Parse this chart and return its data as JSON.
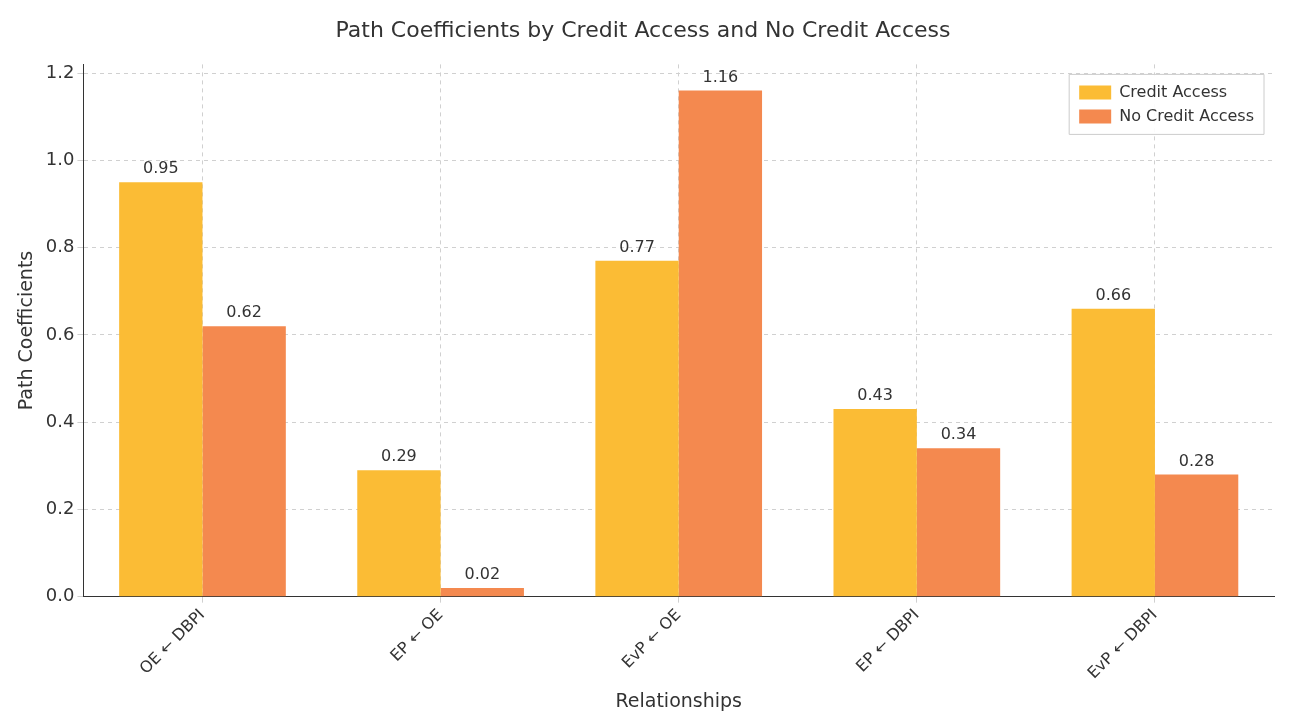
{
  "chart_data": {
    "type": "bar",
    "title": "Path Coefficients by Credit Access and No Credit Access",
    "xlabel": "Relationships",
    "ylabel": "Path Coefficients",
    "categories": [
      "OE ← DBPI",
      "EP ← OE",
      "EvP ← OE",
      "EP ← DBPI",
      "EvP ← DBPI"
    ],
    "series": [
      {
        "name": "Credit Access",
        "color": "#fbbc35",
        "values": [
          0.95,
          0.29,
          0.77,
          0.43,
          0.66
        ]
      },
      {
        "name": "No Credit Access",
        "color": "#f4894f",
        "values": [
          0.62,
          0.02,
          1.16,
          0.34,
          0.28
        ]
      }
    ],
    "ylim": [
      0,
      1.22
    ],
    "yticks": [
      {
        "value": 0,
        "label": "0.0"
      },
      {
        "value": 0.2,
        "label": "0.2"
      },
      {
        "value": 0.4,
        "label": "0.4"
      },
      {
        "value": 0.6,
        "label": "0.6"
      },
      {
        "value": 0.8,
        "label": "0.8"
      },
      {
        "value": 1,
        "label": "1.0"
      },
      {
        "value": 1.2,
        "label": "1.2"
      }
    ],
    "grid": true,
    "legend": "top right",
    "data_labels": true
  }
}
